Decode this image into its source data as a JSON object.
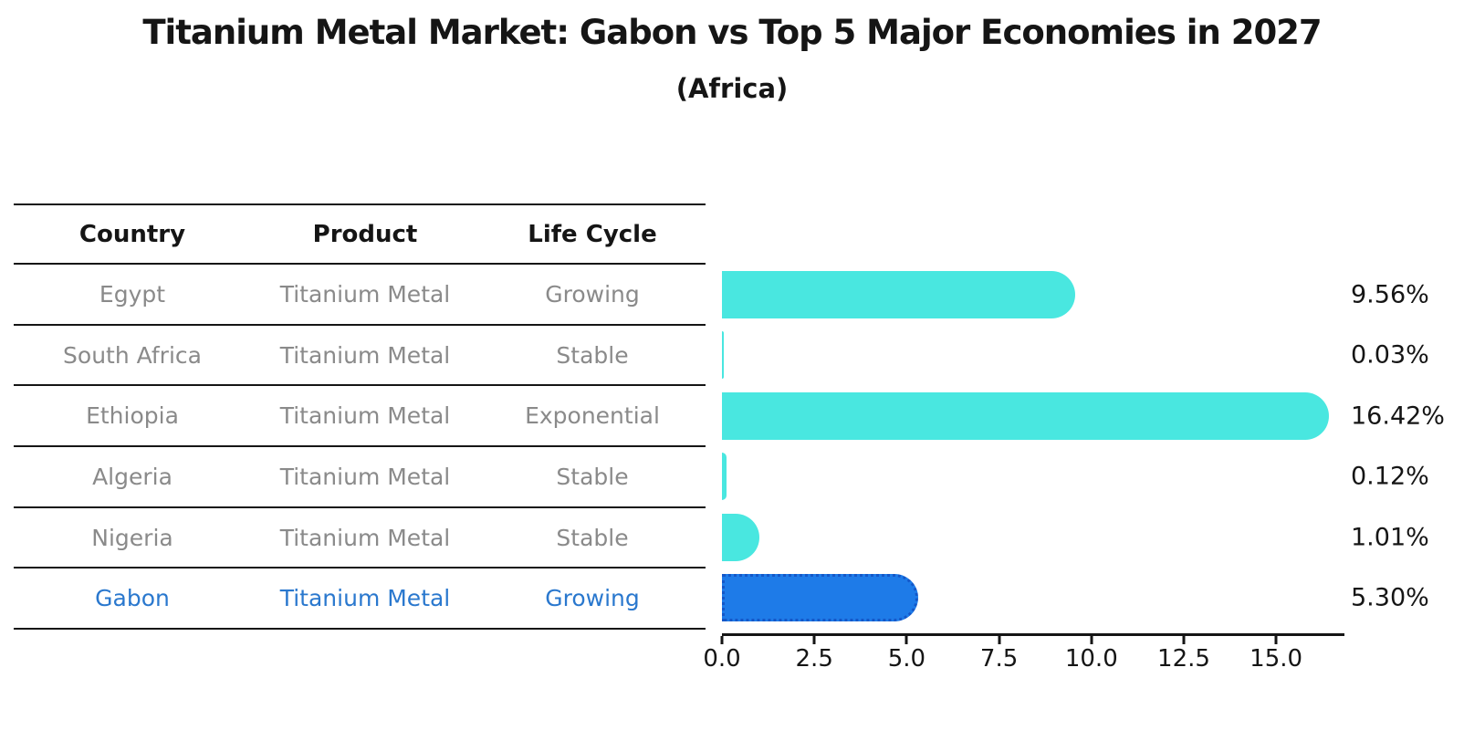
{
  "title": "Titanium Metal Market: Gabon vs Top 5 Major Economies in 2027",
  "subtitle": "(Africa)",
  "table": {
    "headers": {
      "country": "Country",
      "product": "Product",
      "life_cycle": "Life Cycle"
    },
    "rows": [
      {
        "country": "Egypt",
        "product": "Titanium Metal",
        "life_cycle": "Growing",
        "highlight": false
      },
      {
        "country": "South Africa",
        "product": "Titanium Metal",
        "life_cycle": "Stable",
        "highlight": false
      },
      {
        "country": "Ethiopia",
        "product": "Titanium Metal",
        "life_cycle": "Exponential",
        "highlight": false
      },
      {
        "country": "Algeria",
        "product": "Titanium Metal",
        "life_cycle": "Stable",
        "highlight": false
      },
      {
        "country": "Nigeria",
        "product": "Titanium Metal",
        "life_cycle": "Stable",
        "highlight": true
      }
    ],
    "highlight_row": {
      "country": "Gabon",
      "product": "Titanium Metal",
      "life_cycle": "Growing"
    }
  },
  "chart_data": {
    "type": "bar",
    "orientation": "horizontal",
    "title": "Titanium Metal Market: Gabon vs Top 5 Major Economies in 2027",
    "subtitle": "(Africa)",
    "categories": [
      "Egypt",
      "South Africa",
      "Ethiopia",
      "Algeria",
      "Nigeria",
      "Gabon"
    ],
    "values": [
      9.56,
      0.03,
      16.42,
      0.12,
      1.01,
      5.3
    ],
    "value_labels": [
      "9.56%",
      "0.03%",
      "16.42%",
      "0.12%",
      "1.01%",
      "5.30%"
    ],
    "xticks": [
      0,
      2.5,
      5,
      7.5,
      10,
      12.5,
      15
    ],
    "xtick_labels": [
      "0.0",
      "2.5",
      "5.0",
      "7.5",
      "10.0",
      "12.5",
      "15.0"
    ],
    "xlim": [
      0,
      16.8
    ],
    "xlabel": "",
    "ylabel": "",
    "grid": false,
    "legend": "none",
    "bar_color": "#49e7e0",
    "highlight_index": 5,
    "highlight_color": "#1e7be8",
    "highlight_border_color": "#1457c8"
  },
  "colors": {
    "muted_text": "#8a8a8a",
    "highlight_text": "#2a78ce",
    "text": "#151515"
  }
}
